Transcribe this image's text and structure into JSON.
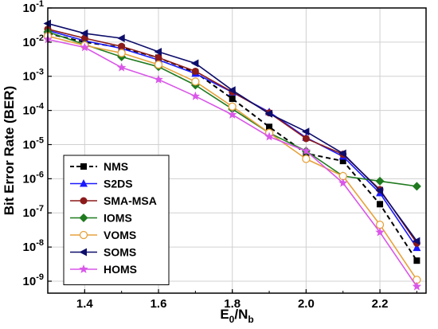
{
  "chart_data": {
    "type": "line",
    "x": [
      1.3,
      1.4,
      1.5,
      1.6,
      1.7,
      1.8,
      1.9,
      2.0,
      2.1,
      2.2,
      2.3
    ],
    "xlabel": {
      "main": "E",
      "sub1": "0",
      "mid": "/N",
      "sub2": "b"
    },
    "ylabel": "Bit Error Rate (BER)",
    "xlim": [
      1.3,
      2.325
    ],
    "ylim_log10": [
      -9.35,
      -1
    ],
    "y_scale": "log",
    "grid": true,
    "legend_position": "bottom-left",
    "x_ticks": [
      {
        "value": 1.4,
        "label": "1.4"
      },
      {
        "value": 1.6,
        "label": "1.6"
      },
      {
        "value": 1.8,
        "label": "1.8"
      },
      {
        "value": 2.0,
        "label": "2.0"
      },
      {
        "value": 2.2,
        "label": "2.2"
      }
    ],
    "y_ticks": [
      {
        "exp": -1,
        "base": "10",
        "sup": "-1"
      },
      {
        "exp": -2,
        "base": "10",
        "sup": "-2"
      },
      {
        "exp": -3,
        "base": "10",
        "sup": "-3"
      },
      {
        "exp": -4,
        "base": "10",
        "sup": "-4"
      },
      {
        "exp": -5,
        "base": "10",
        "sup": "-5"
      },
      {
        "exp": -6,
        "base": "10",
        "sup": "-6"
      },
      {
        "exp": -7,
        "base": "10",
        "sup": "-7"
      },
      {
        "exp": -8,
        "base": "10",
        "sup": "-8"
      },
      {
        "exp": -9,
        "base": "10",
        "sup": "-9"
      }
    ],
    "series": [
      {
        "name": "NMS",
        "color": "#000000",
        "marker": "square",
        "dash": true,
        "values": [
          0.018,
          0.01,
          0.007,
          0.0035,
          0.0013,
          0.00022,
          3.3e-05,
          5.5e-06,
          3.3e-06,
          1.8e-07,
          4e-09
        ]
      },
      {
        "name": "S2DS",
        "color": "#1a1aff",
        "marker": "triangle-up",
        "dash": false,
        "values": [
          0.022,
          0.011,
          0.0065,
          0.003,
          0.0012,
          0.00034,
          9e-05,
          1.6e-05,
          4.5e-06,
          3.8e-07,
          9.5e-09
        ]
      },
      {
        "name": "SMA-MSA",
        "color": "#8b1a1a",
        "marker": "circle",
        "dash": false,
        "values": [
          0.024,
          0.013,
          0.0075,
          0.0035,
          0.0014,
          0.00035,
          8.5e-05,
          1.5e-05,
          5.2e-06,
          4.8e-07,
          1.3e-08
        ]
      },
      {
        "name": "IOMS",
        "color": "#1f7a1f",
        "marker": "diamond",
        "dash": false,
        "values": [
          0.02,
          0.0085,
          0.0037,
          0.0019,
          0.00055,
          0.00011,
          2.2e-05,
          6.5e-06,
          1.2e-06,
          8.5e-07,
          6e-07
        ]
      },
      {
        "name": "VOMS",
        "color": "#e6a23c",
        "marker": "circle-open",
        "dash": false,
        "values": [
          0.015,
          0.008,
          0.0048,
          0.0022,
          0.0007,
          0.00013,
          2.2e-05,
          3.8e-06,
          1.2e-06,
          4.5e-08,
          1.1e-09
        ]
      },
      {
        "name": "SOMS",
        "color": "#0d0d6b",
        "marker": "triangle-left",
        "dash": false,
        "values": [
          0.035,
          0.018,
          0.013,
          0.0052,
          0.0024,
          0.00039,
          8e-05,
          2.4e-05,
          5.5e-06,
          4.5e-07,
          1.5e-08
        ]
      },
      {
        "name": "HOMS",
        "color": "#d957e8",
        "marker": "star",
        "dash": false,
        "values": [
          0.012,
          0.007,
          0.0018,
          0.0008,
          0.00026,
          7.5e-05,
          1.7e-05,
          6.5e-06,
          7.5e-07,
          2.7e-08,
          7e-10
        ]
      }
    ]
  }
}
